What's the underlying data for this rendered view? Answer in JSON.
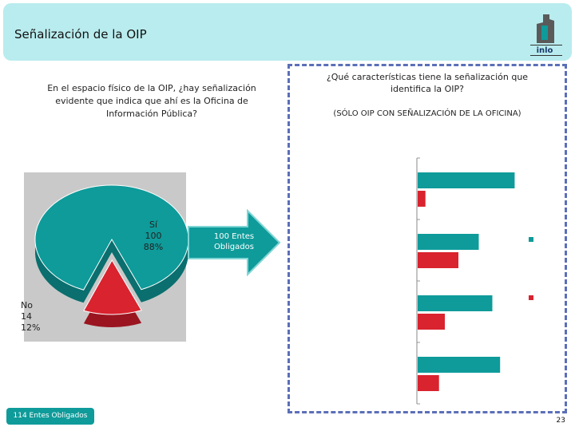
{
  "header": {
    "title": "Señalización de la OIP",
    "logo_text": "inlo"
  },
  "colors": {
    "teal": "#0e9b9a",
    "red": "#d9232f",
    "header_bg": "#b9ecee",
    "dash": "#5b6fb8"
  },
  "chart_data": [
    {
      "type": "pie",
      "title": "En el espacio físico de la OIP, ¿hay señalización evidente que indica que ahí es la Oficina de Información Pública?",
      "slices": [
        {
          "label": "Sí",
          "value": 100,
          "percent": "88%",
          "color": "#0e9b9a"
        },
        {
          "label": "No",
          "value": 14,
          "percent": "12%",
          "color": "#d9232f"
        }
      ],
      "total_label": "114 Entes Obligados"
    },
    {
      "type": "bar",
      "orientation": "horizontal",
      "title": "¿Qué características tiene la señalización que identifica la OIP?",
      "subtitle": "(SÓLO OIP CON SEÑALIZACIÓN DE LA OFICINA)",
      "categories": [
        "",
        "",
        "",
        ""
      ],
      "series": [
        {
          "values": [
            100,
            63,
            77,
            85
          ],
          "color": "#0e9b9a"
        },
        {
          "values": [
            8,
            42,
            28,
            22
          ],
          "color": "#d9232f"
        }
      ],
      "xlim": [
        0,
        140
      ],
      "grid": true
    }
  ],
  "arrow": {
    "text": "100 Entes Obligados"
  },
  "footer": {
    "label": "114 Entes Obligados"
  },
  "page_number": "23"
}
